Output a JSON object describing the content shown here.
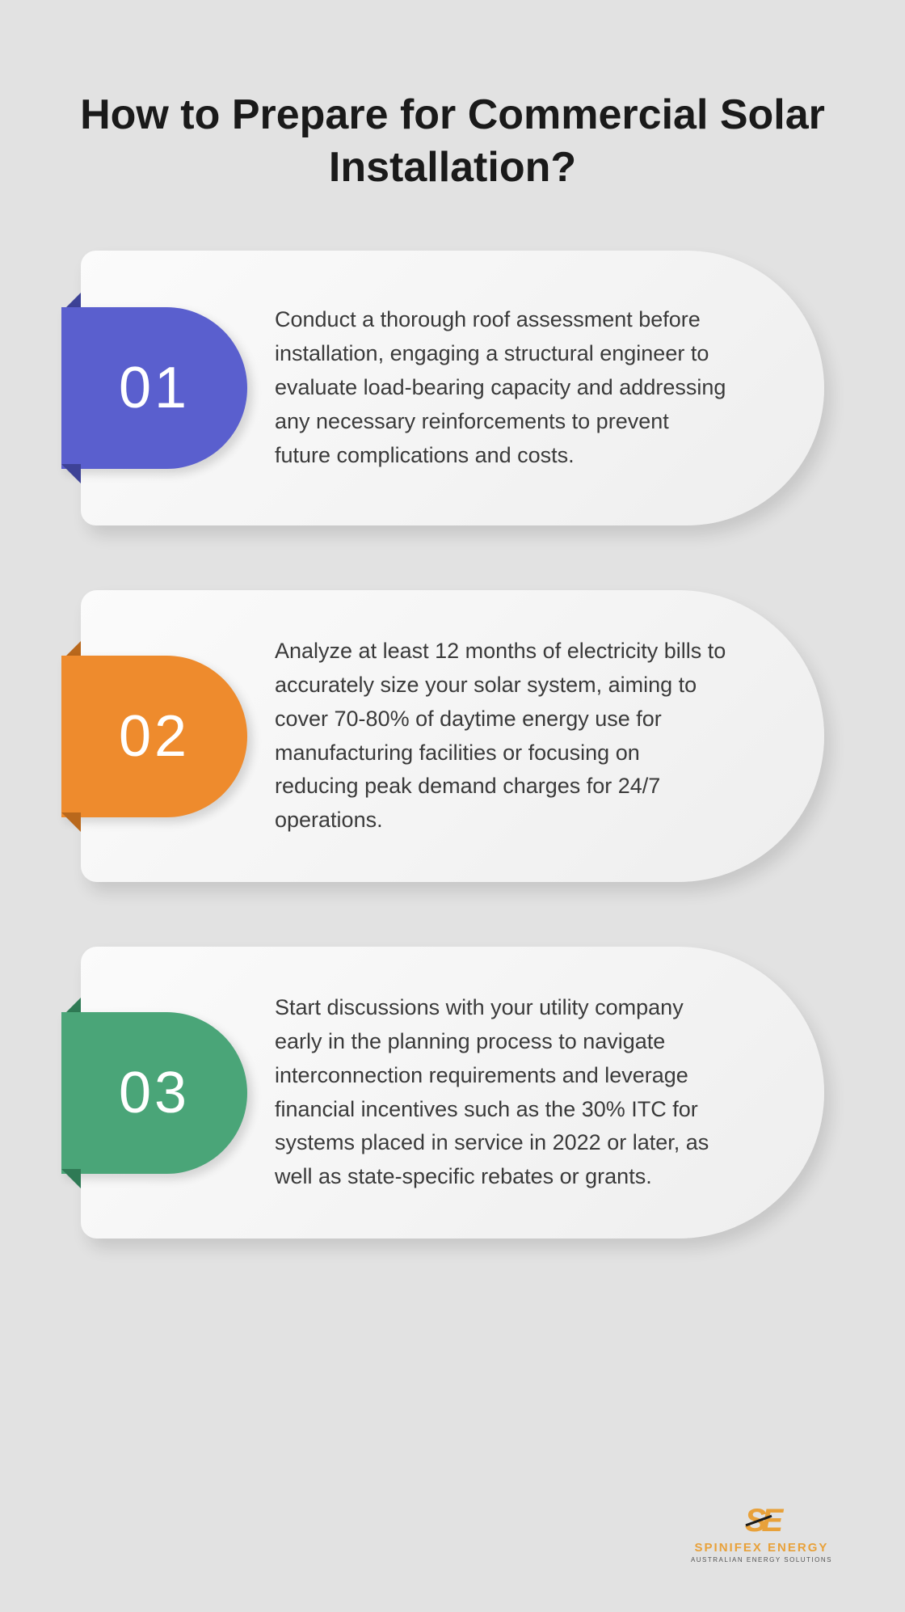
{
  "title": "How to Prepare for Commercial Solar Installation?",
  "background_color": "#e2e2e2",
  "title_color": "#1a1a1a",
  "title_fontsize": 52,
  "card_bg_gradient": [
    "#fbfbfb",
    "#eeeeee"
  ],
  "body_text_color": "#3a3a3a",
  "body_fontsize": 27,
  "items": [
    {
      "num": "01",
      "color": "#5a5fce",
      "fold_color": "#3d4296",
      "text": "Conduct a thorough roof assessment before installation, engaging a structural engineer to evaluate load-bearing capacity and addressing any necessary reinforcements to prevent future complications and costs."
    },
    {
      "num": "02",
      "color": "#ee8b2d",
      "fold_color": "#b9681c",
      "text": "Analyze at least 12 months of electricity bills to accurately size your solar system, aiming to cover 70-80% of daytime energy use for manufacturing facilities or focusing on reducing peak demand charges for 24/7 operations."
    },
    {
      "num": "03",
      "color": "#4aa578",
      "fold_color": "#2f7a55",
      "text": "Start discussions with your utility company early in the planning process to navigate interconnection requirements and leverage financial incentives such as the 30% ITC for systems placed in service in 2022 or later, as well as state-specific rebates or grants."
    }
  ],
  "logo": {
    "mark": "SE",
    "name": "SPINIFEX ENERGY",
    "tagline": "AUSTRALIAN ENERGY SOLUTIONS",
    "brand_color": "#e8a13a"
  }
}
